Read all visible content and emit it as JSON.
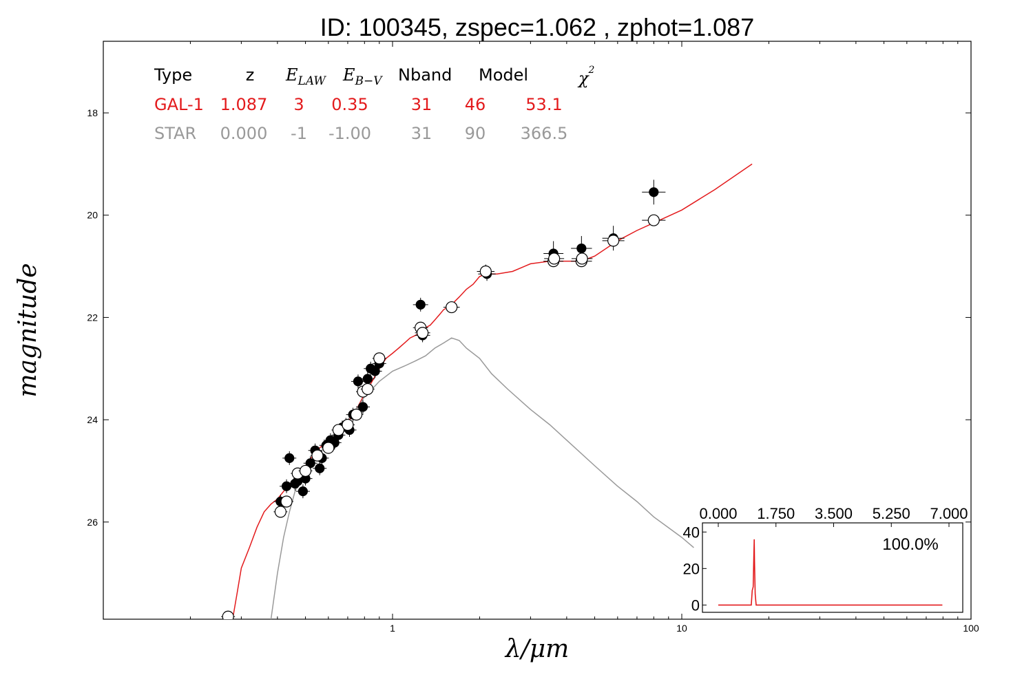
{
  "title": "ID:  100345, zspec=1.062 , zphot=1.087",
  "chart_data": [
    {
      "type": "scatter",
      "xscale": "log",
      "xlim": [
        0.1,
        100
      ],
      "ylim": [
        27.9,
        16.6
      ],
      "y_inverted": true,
      "xlabel": "λ/μm",
      "ylabel": "magnitude",
      "x_tick_labels": [
        "1",
        "10",
        "100"
      ],
      "x_ticks": [
        1,
        10,
        100
      ],
      "y_tick_labels": [
        "18",
        "20",
        "22",
        "24",
        "26"
      ],
      "y_ticks": [
        18,
        20,
        22,
        24,
        26
      ],
      "table": {
        "headers": [
          "Type",
          "z",
          "E",
          "LAW",
          "E",
          "B−V",
          "Nband",
          "Model",
          "χ",
          "2"
        ],
        "rows": [
          {
            "cells": [
              "GAL-1",
              "1.087",
              "3",
              "0.35",
              "31",
              "46",
              "53.1"
            ],
            "color": "#e31a1c"
          },
          {
            "cells": [
              "STAR",
              "0.000",
              "-1",
              "-1.00",
              "31",
              "90",
              "366.5"
            ],
            "color": "#999999"
          }
        ]
      },
      "series": [
        {
          "kind": "line",
          "color": "#e31a1c",
          "x": [
            0.28,
            0.29,
            0.3,
            0.32,
            0.34,
            0.36,
            0.38,
            0.4,
            0.42,
            0.45,
            0.48,
            0.5,
            0.53,
            0.56,
            0.6,
            0.65,
            0.7,
            0.75,
            0.8,
            0.85,
            0.9,
            0.95,
            1.0,
            1.05,
            1.1,
            1.15,
            1.2,
            1.25,
            1.3,
            1.35,
            1.4,
            1.45,
            1.5,
            1.6,
            1.7,
            1.8,
            1.9,
            2.0,
            2.1,
            2.3,
            2.6,
            3.0,
            3.5,
            4.0,
            4.5,
            5.0,
            6.0,
            7.0,
            8.0,
            10.0,
            13.0,
            17.5
          ],
          "y": [
            27.9,
            27.4,
            26.9,
            26.5,
            26.1,
            25.8,
            25.65,
            25.55,
            25.4,
            25.2,
            25.05,
            24.9,
            24.7,
            24.55,
            24.4,
            24.25,
            24.05,
            23.8,
            23.5,
            23.25,
            23.0,
            22.8,
            22.7,
            22.6,
            22.5,
            22.4,
            22.35,
            22.3,
            22.2,
            22.15,
            22.05,
            21.95,
            21.85,
            21.75,
            21.6,
            21.45,
            21.35,
            21.2,
            21.15,
            21.15,
            21.1,
            20.95,
            20.9,
            20.9,
            20.9,
            20.8,
            20.5,
            20.3,
            20.15,
            19.9,
            19.5,
            19.0
          ]
        },
        {
          "kind": "line",
          "color": "#999999",
          "x": [
            0.38,
            0.4,
            0.42,
            0.44,
            0.46,
            0.48,
            0.5,
            0.55,
            0.6,
            0.65,
            0.7,
            0.75,
            0.8,
            0.85,
            0.9,
            1.0,
            1.1,
            1.2,
            1.3,
            1.4,
            1.5,
            1.6,
            1.7,
            1.8,
            2.0,
            2.2,
            2.5,
            3.0,
            3.5,
            4.0,
            5.0,
            6.0,
            7.0,
            8.0,
            10.0,
            11.0
          ],
          "y": [
            27.9,
            27.0,
            26.3,
            25.8,
            25.4,
            25.2,
            25.0,
            24.7,
            24.45,
            24.2,
            24.0,
            23.8,
            23.55,
            23.4,
            23.25,
            23.05,
            22.95,
            22.85,
            22.75,
            22.6,
            22.5,
            22.4,
            22.45,
            22.6,
            22.8,
            23.1,
            23.4,
            23.8,
            24.1,
            24.4,
            24.9,
            25.3,
            25.6,
            25.9,
            26.3,
            26.5
          ]
        },
        {
          "kind": "points",
          "name": "observed",
          "marker": "filled",
          "color": "#000000",
          "x": [
            0.41,
            0.43,
            0.44,
            0.46,
            0.47,
            0.49,
            0.5,
            0.52,
            0.54,
            0.56,
            0.57,
            0.59,
            0.61,
            0.63,
            0.65,
            0.67,
            0.69,
            0.71,
            0.73,
            0.76,
            0.79,
            0.82,
            0.84,
            0.87,
            0.9,
            1.25,
            1.27,
            2.1,
            2.12,
            3.6,
            4.5,
            5.8,
            8.0
          ],
          "y": [
            25.6,
            25.3,
            24.75,
            25.25,
            25.2,
            25.4,
            25.15,
            24.85,
            24.6,
            24.95,
            24.75,
            24.5,
            24.4,
            24.45,
            24.3,
            24.15,
            24.1,
            24.2,
            23.9,
            23.25,
            23.75,
            23.2,
            23.0,
            23.05,
            22.9,
            21.75,
            22.35,
            21.1,
            21.15,
            20.75,
            20.65,
            20.45,
            19.55
          ]
        },
        {
          "kind": "points",
          "name": "model",
          "marker": "open",
          "color": "#000000",
          "x": [
            0.27,
            0.41,
            0.43,
            0.47,
            0.5,
            0.55,
            0.6,
            0.65,
            0.7,
            0.75,
            0.79,
            0.82,
            0.9,
            1.25,
            1.27,
            1.6,
            2.1,
            3.6,
            3.62,
            4.5,
            4.52,
            5.8,
            8.0
          ],
          "y": [
            27.85,
            25.8,
            25.6,
            25.05,
            25.0,
            24.7,
            24.55,
            24.2,
            24.1,
            23.9,
            23.45,
            23.4,
            22.8,
            22.2,
            22.3,
            21.8,
            21.1,
            20.9,
            20.85,
            20.9,
            20.85,
            20.5,
            20.1
          ]
        }
      ]
    },
    {
      "type": "line",
      "color": "#e31a1c",
      "xlim": [
        -0.4,
        7.0
      ],
      "ylim": [
        -4,
        45
      ],
      "x_tick_labels": [
        "0.000",
        "1.750",
        "3.500",
        "5.250",
        "7.000"
      ],
      "x_ticks": [
        0.0,
        1.75,
        3.5,
        5.25,
        7.0
      ],
      "y_tick_labels": [
        "0",
        "20",
        "40"
      ],
      "y_ticks": [
        0,
        20,
        40
      ],
      "annotation": "100.0%",
      "x": [
        0.0,
        0.8,
        1.0,
        1.03,
        1.06,
        1.08,
        1.09,
        1.1,
        1.12,
        1.15,
        1.2,
        2.0,
        4.0,
        6.8
      ],
      "y": [
        0,
        0,
        0,
        8,
        10,
        28,
        36,
        24,
        6,
        0,
        0,
        0,
        0,
        0
      ]
    }
  ]
}
